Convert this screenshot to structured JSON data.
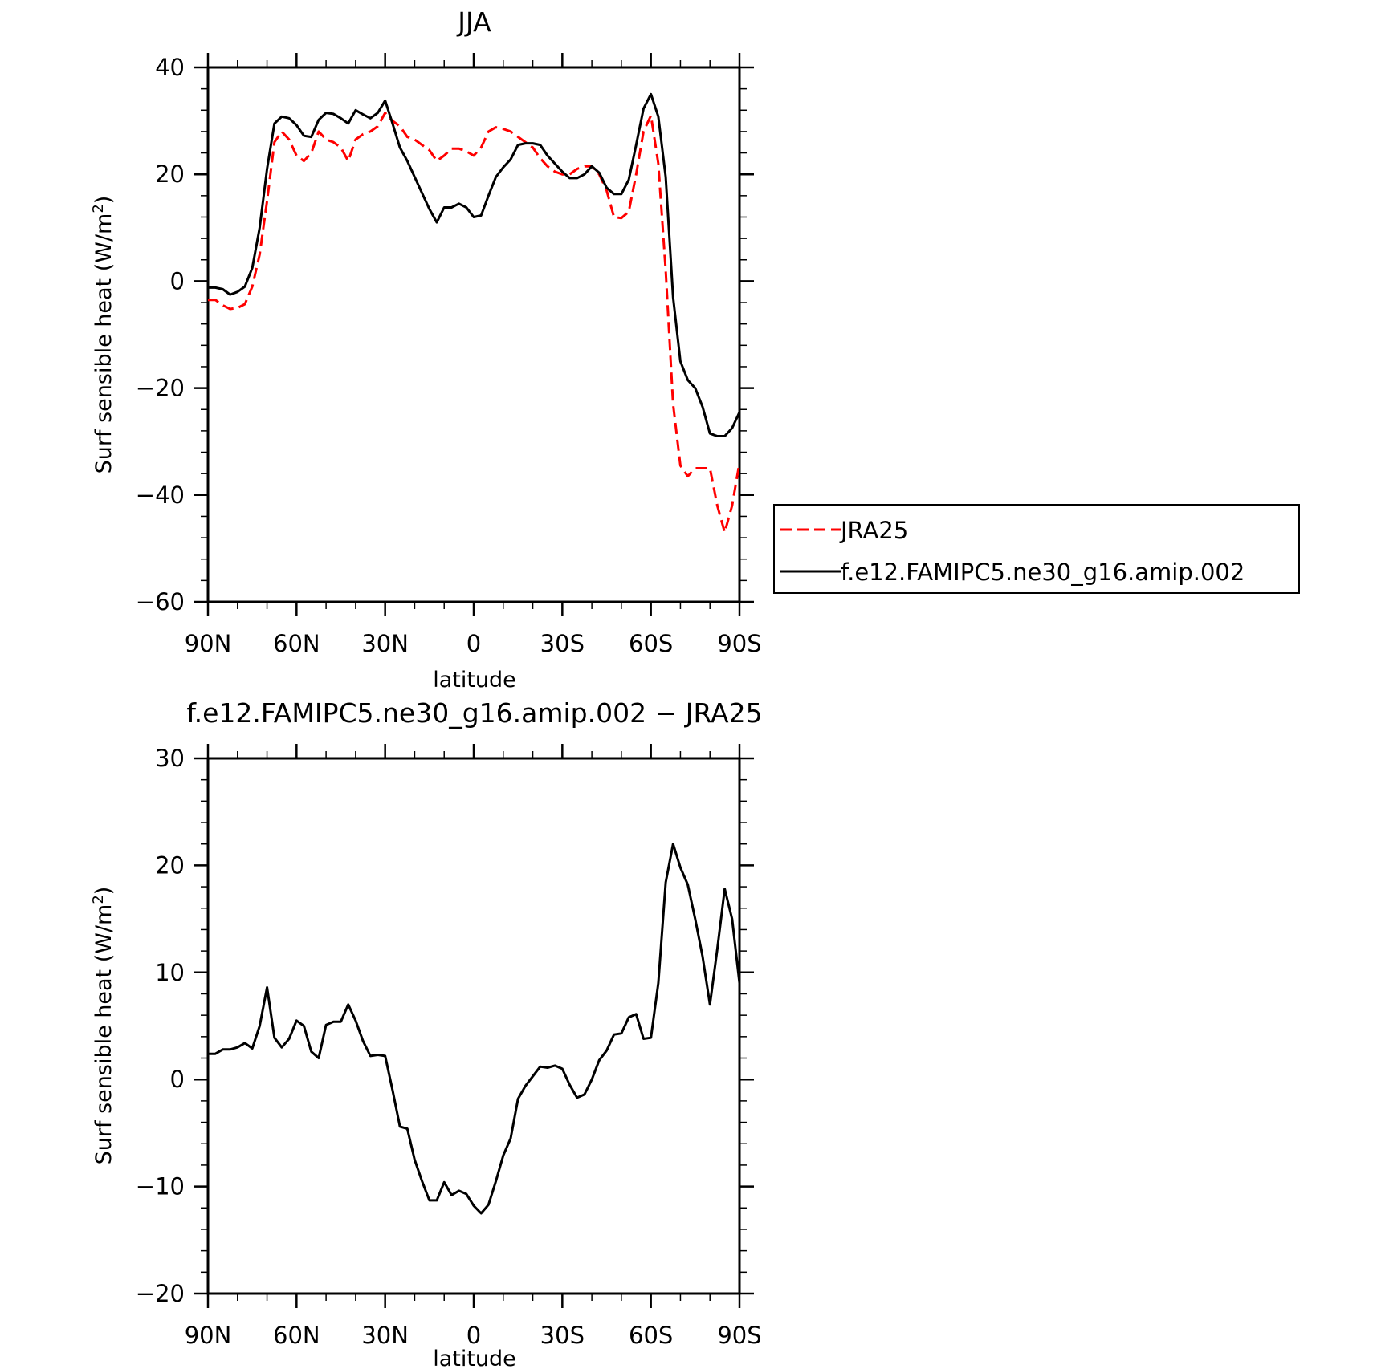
{
  "chart_data": [
    {
      "type": "line",
      "title": "JJA",
      "xlabel": "latitude",
      "ylabel": "Surf sensible heat (W/m",
      "ylabel_sup": "2",
      "ylabel_end": ")",
      "xlim": [
        90,
        -90
      ],
      "ylim": [
        -60,
        40
      ],
      "xtick_values": [
        90,
        60,
        30,
        0,
        -30,
        -60,
        -90
      ],
      "xtick_labels": [
        "90N",
        "60N",
        "30N",
        "0",
        "30S",
        "60S",
        "90S"
      ],
      "ytick_values": [
        -60,
        -40,
        -20,
        0,
        20,
        40
      ],
      "ytick_labels": [
        "−60",
        "−40",
        "−20",
        "0",
        "20",
        "40"
      ],
      "legend_position": "right, outside plot",
      "series": [
        {
          "name": "JRA25",
          "color": "#ff0000",
          "style": "dashed",
          "x": [
            90,
            87.5,
            85,
            82.5,
            80,
            77.5,
            75,
            72.5,
            70,
            67.5,
            65,
            62.5,
            60,
            57.5,
            55,
            52.5,
            50,
            47.5,
            45,
            42.5,
            40,
            37.5,
            35,
            32.5,
            30,
            27.5,
            25,
            22.5,
            20,
            17.5,
            15,
            12.5,
            10,
            7.5,
            5,
            2.5,
            0,
            -2.5,
            -5,
            -7.5,
            -10,
            -12.5,
            -15,
            -17.5,
            -20,
            -22.5,
            -25,
            -27.5,
            -30,
            -32.5,
            -35,
            -37.5,
            -40,
            -42.5,
            -45,
            -47.5,
            -50,
            -52.5,
            -55,
            -57.5,
            -60,
            -62.5,
            -65,
            -67.5,
            -70,
            -72.5,
            -75,
            -77.5,
            -80,
            -82.5,
            -85,
            -87.5,
            -90
          ],
          "values": [
            -3.5,
            -3.5,
            -4.5,
            -5.2,
            -5,
            -4.3,
            -1,
            5,
            15,
            26,
            28,
            26.5,
            23.5,
            22.5,
            24,
            28,
            26.5,
            26,
            25,
            22.5,
            26.5,
            27.5,
            28,
            29,
            31.5,
            30,
            29,
            27,
            26.5,
            25.5,
            24.5,
            22.5,
            23.5,
            24.8,
            24.8,
            24.3,
            23.5,
            25,
            28,
            28.8,
            28.5,
            28,
            27,
            26,
            25,
            23,
            21.5,
            20.5,
            20,
            20,
            21,
            21.5,
            21.5,
            20,
            17,
            12,
            11.8,
            13,
            20,
            28,
            31,
            22,
            2,
            -23,
            -34.5,
            -36.5,
            -35,
            -35,
            -35,
            -42,
            -47,
            -42,
            -34
          ]
        },
        {
          "name": "f.e12.FAMIPC5.ne30_g16.amip.002",
          "color": "#000000",
          "style": "solid",
          "x": [
            90,
            87.5,
            85,
            82.5,
            80,
            77.5,
            75,
            72.5,
            70,
            67.5,
            65,
            62.5,
            60,
            57.5,
            55,
            52.5,
            50,
            47.5,
            45,
            42.5,
            40,
            37.5,
            35,
            32.5,
            30,
            27.5,
            25,
            22.5,
            20,
            17.5,
            15,
            12.5,
            10,
            7.5,
            5,
            2.5,
            0,
            -2.5,
            -5,
            -7.5,
            -10,
            -12.5,
            -15,
            -17.5,
            -20,
            -22.5,
            -25,
            -27.5,
            -30,
            -32.5,
            -35,
            -37.5,
            -40,
            -42.5,
            -45,
            -47.5,
            -50,
            -52.5,
            -55,
            -57.5,
            -60,
            -62.5,
            -65,
            -67.5,
            -70,
            -72.5,
            -75,
            -77.5,
            -80,
            -82.5,
            -85,
            -87.5,
            -90
          ],
          "values": [
            -1.2,
            -1.2,
            -1.5,
            -2.5,
            -2,
            -1,
            2.5,
            10,
            21,
            29.5,
            30.8,
            30.5,
            29.2,
            27.2,
            27,
            30.2,
            31.5,
            31.3,
            30.5,
            29.5,
            32,
            31.2,
            30.5,
            31.5,
            33.8,
            29.5,
            25,
            22.5,
            19.5,
            16.5,
            13.5,
            11,
            13.8,
            13.8,
            14.5,
            13.8,
            12,
            12.3,
            16,
            19.5,
            21.3,
            22.8,
            25.5,
            25.8,
            25.8,
            25.5,
            23.5,
            22,
            20.5,
            19.3,
            19.3,
            20,
            21.5,
            20.3,
            17.5,
            16.3,
            16.3,
            19,
            25.5,
            32.3,
            35,
            30.8,
            19.5,
            -3,
            -15,
            -18.5,
            -20,
            -23.5,
            -28.5,
            -29,
            -29,
            -27.5,
            -24.5
          ]
        }
      ]
    },
    {
      "type": "line",
      "title": "f.e12.FAMIPC5.ne30_g16.amip.002 − JRA25",
      "xlabel": "latitude",
      "ylabel": "Surf sensible heat (W/m",
      "ylabel_sup": "2",
      "ylabel_end": ")",
      "xlim": [
        90,
        -90
      ],
      "ylim": [
        -20,
        30
      ],
      "xtick_values": [
        90,
        60,
        30,
        0,
        -30,
        -60,
        -90
      ],
      "xtick_labels": [
        "90N",
        "60N",
        "30N",
        "0",
        "30S",
        "60S",
        "90S"
      ],
      "ytick_values": [
        -20,
        -10,
        0,
        10,
        20,
        30
      ],
      "ytick_labels": [
        "−20",
        "−10",
        "0",
        "10",
        "20",
        "30"
      ],
      "series": [
        {
          "color": "#000000",
          "style": "solid",
          "x": [
            90,
            87.5,
            85,
            82.5,
            80,
            77.5,
            75,
            72.5,
            70,
            67.5,
            65,
            62.5,
            60,
            57.5,
            55,
            52.5,
            50,
            47.5,
            45,
            42.5,
            40,
            37.5,
            35,
            32.5,
            30,
            27.5,
            25,
            22.5,
            20,
            17.5,
            15,
            12.5,
            10,
            7.5,
            5,
            2.5,
            0,
            -2.5,
            -5,
            -7.5,
            -10,
            -12.5,
            -15,
            -17.5,
            -20,
            -22.5,
            -25,
            -27.5,
            -30,
            -32.5,
            -35,
            -37.5,
            -40,
            -42.5,
            -45,
            -47.5,
            -50,
            -52.5,
            -55,
            -57.5,
            -60,
            -62.5,
            -65,
            -67.5,
            -70,
            -72.5,
            -75,
            -77.5,
            -80,
            -82.5,
            -85,
            -87.5,
            -90
          ],
          "values": [
            2.4,
            2.4,
            2.8,
            2.8,
            3,
            3.4,
            2.9,
            5,
            8.6,
            3.9,
            3,
            3.8,
            5.5,
            5,
            2.6,
            2,
            5.1,
            5.4,
            5.4,
            7,
            5.5,
            3.6,
            2.2,
            2.3,
            2.2,
            -1,
            -4.4,
            -4.6,
            -7.5,
            -9.5,
            -11.3,
            -11.3,
            -9.6,
            -10.8,
            -10.4,
            -10.7,
            -11.8,
            -12.5,
            -11.7,
            -9.5,
            -7.1,
            -5.5,
            -1.8,
            -0.6,
            0.3,
            1.2,
            1.1,
            1.3,
            1,
            -0.5,
            -1.7,
            -1.4,
            0,
            1.8,
            2.7,
            4.2,
            4.3,
            5.8,
            6.1,
            3.8,
            3.9,
            9,
            18.4,
            22,
            19.8,
            18.2,
            15,
            11.5,
            7,
            12.2,
            17.8,
            15,
            9
          ]
        }
      ]
    }
  ]
}
